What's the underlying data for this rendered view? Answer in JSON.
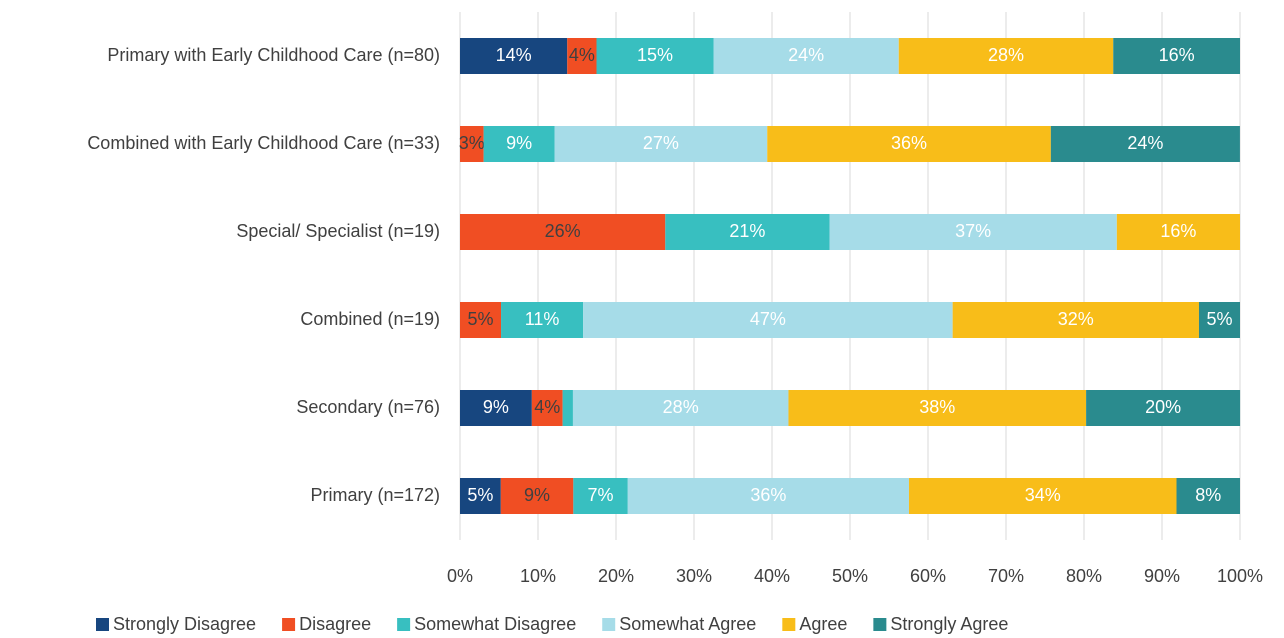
{
  "chart_data": {
    "type": "stacked-bar-horizontal",
    "categories": [
      "Primary with Early Childhood Care (n=80)",
      "Combined with Early Childhood Care (n=33)",
      "Special/ Specialist (n=19)",
      "Combined (n=19)",
      "Secondary (n=76)",
      "Primary (n=172)"
    ],
    "series": [
      {
        "name": "Strongly Disagree",
        "color": "#17467f",
        "label_color": "#ffffff",
        "values": [
          13.75,
          0,
          0,
          0,
          9.21,
          5.23
        ],
        "value_labels": [
          "14%",
          null,
          null,
          null,
          "9%",
          "5%"
        ]
      },
      {
        "name": "Disagree",
        "color": "#f04e23",
        "label_color": "#404040",
        "values": [
          3.75,
          3.03,
          26.32,
          5.26,
          3.95,
          9.3
        ],
        "value_labels": [
          "4%",
          "3%",
          "26%",
          "5%",
          "4%",
          "9%"
        ]
      },
      {
        "name": "Somewhat Disagree",
        "color": "#38bfc0",
        "label_color": "#ffffff",
        "values": [
          15,
          9.09,
          21.05,
          10.53,
          1.32,
          6.98
        ],
        "value_labels": [
          "15%",
          "9%",
          "21%",
          "11%",
          null,
          "7%"
        ]
      },
      {
        "name": "Somewhat Agree",
        "color": "#a6dce8",
        "label_color": "#ffffff",
        "values": [
          23.75,
          27.27,
          36.84,
          47.37,
          27.63,
          36.05
        ],
        "value_labels": [
          "24%",
          "27%",
          "37%",
          "47%",
          "28%",
          "36%"
        ]
      },
      {
        "name": "Agree",
        "color": "#f8bd19",
        "label_color": "#ffffff",
        "values": [
          27.5,
          36.36,
          15.79,
          31.58,
          38.16,
          34.3
        ],
        "value_labels": [
          "28%",
          "36%",
          "16%",
          "32%",
          "38%",
          "34%"
        ]
      },
      {
        "name": "Strongly Agree",
        "color": "#2a8b8e",
        "label_color": "#ffffff",
        "values": [
          16.25,
          24.24,
          0,
          5.26,
          19.74,
          8.14
        ],
        "value_labels": [
          "16%",
          "24%",
          null,
          "5%",
          "20%",
          "8%"
        ]
      }
    ],
    "xlim": [
      0,
      100
    ],
    "xticks": [
      {
        "value": 0,
        "label": "0%"
      },
      {
        "value": 10,
        "label": "10%"
      },
      {
        "value": 20,
        "label": "20%"
      },
      {
        "value": 30,
        "label": "30%"
      },
      {
        "value": 40,
        "label": "40%"
      },
      {
        "value": 50,
        "label": "50%"
      },
      {
        "value": 60,
        "label": "60%"
      },
      {
        "value": 70,
        "label": "70%"
      },
      {
        "value": 80,
        "label": "80%"
      },
      {
        "value": 90,
        "label": "90%"
      },
      {
        "value": 100,
        "label": "100%"
      }
    ],
    "grid": true,
    "legend": "bottom"
  }
}
